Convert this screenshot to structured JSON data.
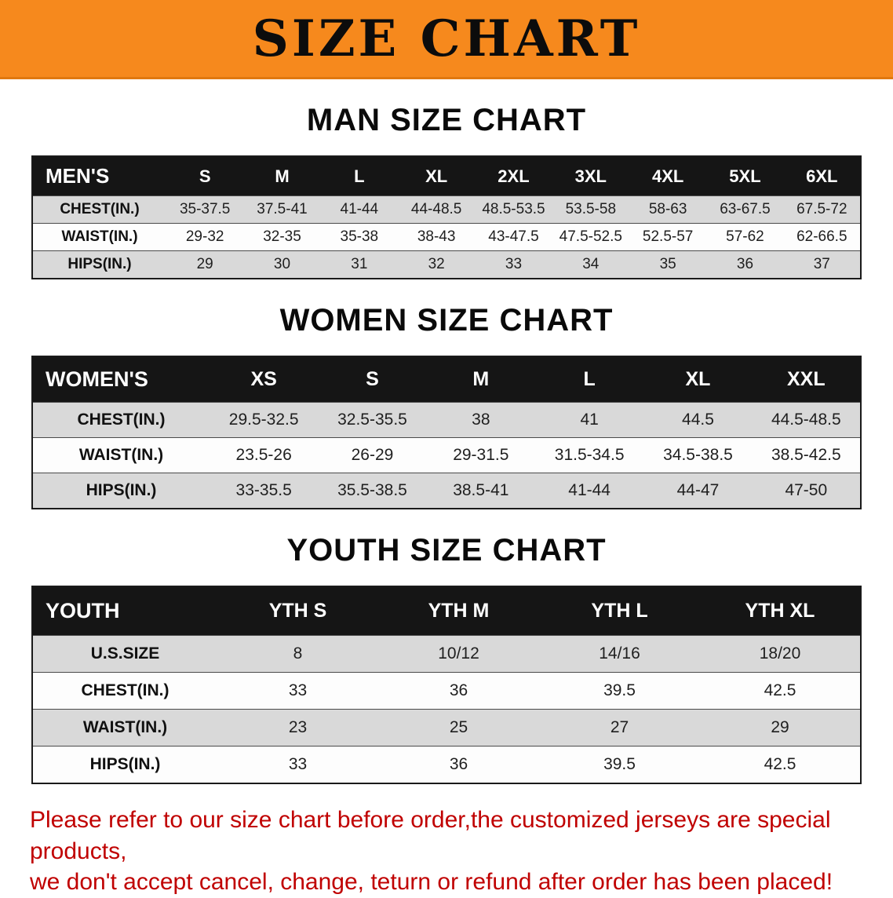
{
  "banner": {
    "title": "SIZE CHART"
  },
  "colors": {
    "banner_bg": "#f6891d",
    "table_header_bg": "#151515",
    "row_alt_bg": "#d9d9d9",
    "disclaimer_text": "#c00000"
  },
  "sections": {
    "men": {
      "heading": "MAN SIZE CHART",
      "table": {
        "header": [
          "MEN'S",
          "S",
          "M",
          "L",
          "XL",
          "2XL",
          "3XL",
          "4XL",
          "5XL",
          "6XL"
        ],
        "rows": [
          [
            "CHEST(IN.)",
            "35-37.5",
            "37.5-41",
            "41-44",
            "44-48.5",
            "48.5-53.5",
            "53.5-58",
            "58-63",
            "63-67.5",
            "67.5-72"
          ],
          [
            "WAIST(IN.)",
            "29-32",
            "32-35",
            "35-38",
            "38-43",
            "43-47.5",
            "47.5-52.5",
            "52.5-57",
            "57-62",
            "62-66.5"
          ],
          [
            "HIPS(IN.)",
            "29",
            "30",
            "31",
            "32",
            "33",
            "34",
            "35",
            "36",
            "37"
          ]
        ]
      }
    },
    "women": {
      "heading": "WOMEN SIZE CHART",
      "table": {
        "header": [
          "WOMEN'S",
          "XS",
          "S",
          "M",
          "L",
          "XL",
          "XXL"
        ],
        "rows": [
          [
            "CHEST(IN.)",
            "29.5-32.5",
            "32.5-35.5",
            "38",
            "41",
            "44.5",
            "44.5-48.5"
          ],
          [
            "WAIST(IN.)",
            "23.5-26",
            "26-29",
            "29-31.5",
            "31.5-34.5",
            "34.5-38.5",
            "38.5-42.5"
          ],
          [
            "HIPS(IN.)",
            "33-35.5",
            "35.5-38.5",
            "38.5-41",
            "41-44",
            "44-47",
            "47-50"
          ]
        ]
      }
    },
    "youth": {
      "heading": "YOUTH SIZE CHART",
      "table": {
        "header": [
          "YOUTH",
          "YTH S",
          "YTH M",
          "YTH L",
          "YTH XL"
        ],
        "rows": [
          [
            "U.S.SIZE",
            "8",
            "10/12",
            "14/16",
            "18/20"
          ],
          [
            "CHEST(IN.)",
            "33",
            "36",
            "39.5",
            "42.5"
          ],
          [
            "WAIST(IN.)",
            "23",
            "25",
            "27",
            "29"
          ],
          [
            "HIPS(IN.)",
            "33",
            "36",
            "39.5",
            "42.5"
          ]
        ]
      }
    }
  },
  "disclaimer": {
    "line1": "Please refer to our size chart before order,the customized jerseys are special products,",
    "line2": "we don't accept cancel, change, teturn or refund after order has been placed!"
  }
}
